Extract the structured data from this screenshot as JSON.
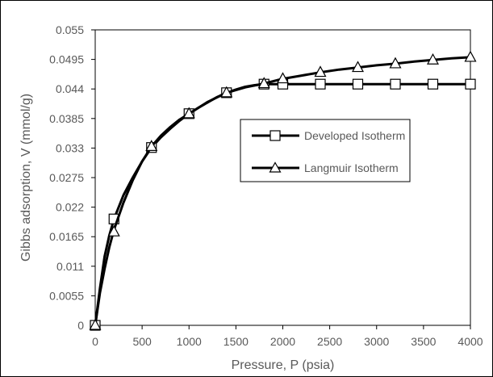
{
  "chart_data": {
    "type": "line",
    "title": "",
    "xlabel": "Pressure, P (psia)",
    "ylabel": "Gibbs adsorption, V (mmol/g)",
    "xlim": [
      0,
      4000
    ],
    "ylim": [
      0,
      0.055
    ],
    "x_ticks": [
      0,
      500,
      1000,
      1500,
      2000,
      2500,
      3000,
      3500,
      4000
    ],
    "y_ticks": [
      0,
      0.0055,
      0.011,
      0.0165,
      0.022,
      0.0275,
      0.033,
      0.0385,
      0.044,
      0.0495,
      0.055
    ],
    "x_tick_labels": [
      "0",
      "500",
      "1000",
      "1500",
      "2000",
      "2500",
      "3000",
      "3500",
      "4000"
    ],
    "y_tick_labels": [
      "0",
      "0.0055",
      "0.011",
      "0.0165",
      "0.022",
      "0.0275",
      "0.033",
      "0.0385",
      "0.044",
      "0.0495",
      "0.055"
    ],
    "grid": false,
    "legend_position": "center-right",
    "series": [
      {
        "name": "Developed Isotherm",
        "marker": "square",
        "color": "#000000",
        "x": [
          0,
          200,
          600,
          1000,
          1400,
          1800,
          2000,
          2400,
          2800,
          3200,
          3600,
          4000
        ],
        "y": [
          0,
          0.0198,
          0.0331,
          0.0394,
          0.0433,
          0.0449,
          0.0449,
          0.0449,
          0.0449,
          0.0449,
          0.0449,
          0.0449
        ],
        "curve": {
          "x": [
            0,
            50,
            100,
            150,
            200,
            300,
            400,
            500,
            600,
            700,
            800,
            900,
            1000,
            1100,
            1200,
            1300,
            1400,
            1500,
            1600,
            1700,
            1750,
            1800,
            2000,
            2400,
            2800,
            3200,
            3600,
            4000
          ],
          "y": [
            0,
            0.0068,
            0.0128,
            0.0167,
            0.0198,
            0.0242,
            0.0275,
            0.0305,
            0.0331,
            0.035,
            0.0366,
            0.0381,
            0.0394,
            0.0405,
            0.0415,
            0.0425,
            0.0433,
            0.0439,
            0.0444,
            0.0447,
            0.0448,
            0.0449,
            0.0449,
            0.0449,
            0.0449,
            0.0449,
            0.0449,
            0.0449
          ]
        }
      },
      {
        "name": "Langmuir Isotherm",
        "marker": "triangle",
        "color": "#000000",
        "x": [
          0,
          200,
          600,
          1000,
          1400,
          1800,
          2000,
          2400,
          2800,
          3200,
          3600,
          4000
        ],
        "y": [
          0,
          0.0174,
          0.0333,
          0.0394,
          0.0433,
          0.045,
          0.0459,
          0.0471,
          0.048,
          0.0487,
          0.0494,
          0.0499
        ],
        "curve": {
          "x": [
            0,
            50,
            100,
            150,
            200,
            300,
            400,
            500,
            600,
            700,
            800,
            900,
            1000,
            1200,
            1400,
            1600,
            1800,
            2000,
            2200,
            2400,
            2600,
            2800,
            3000,
            3200,
            3400,
            3600,
            3800,
            4000
          ],
          "y": [
            0,
            0.006,
            0.0105,
            0.0145,
            0.0178,
            0.0228,
            0.027,
            0.0305,
            0.0333,
            0.0353,
            0.0369,
            0.0383,
            0.0394,
            0.0416,
            0.0433,
            0.0443,
            0.045,
            0.0459,
            0.0465,
            0.0471,
            0.0476,
            0.048,
            0.0484,
            0.0487,
            0.0491,
            0.0494,
            0.0497,
            0.0499
          ]
        }
      }
    ]
  }
}
